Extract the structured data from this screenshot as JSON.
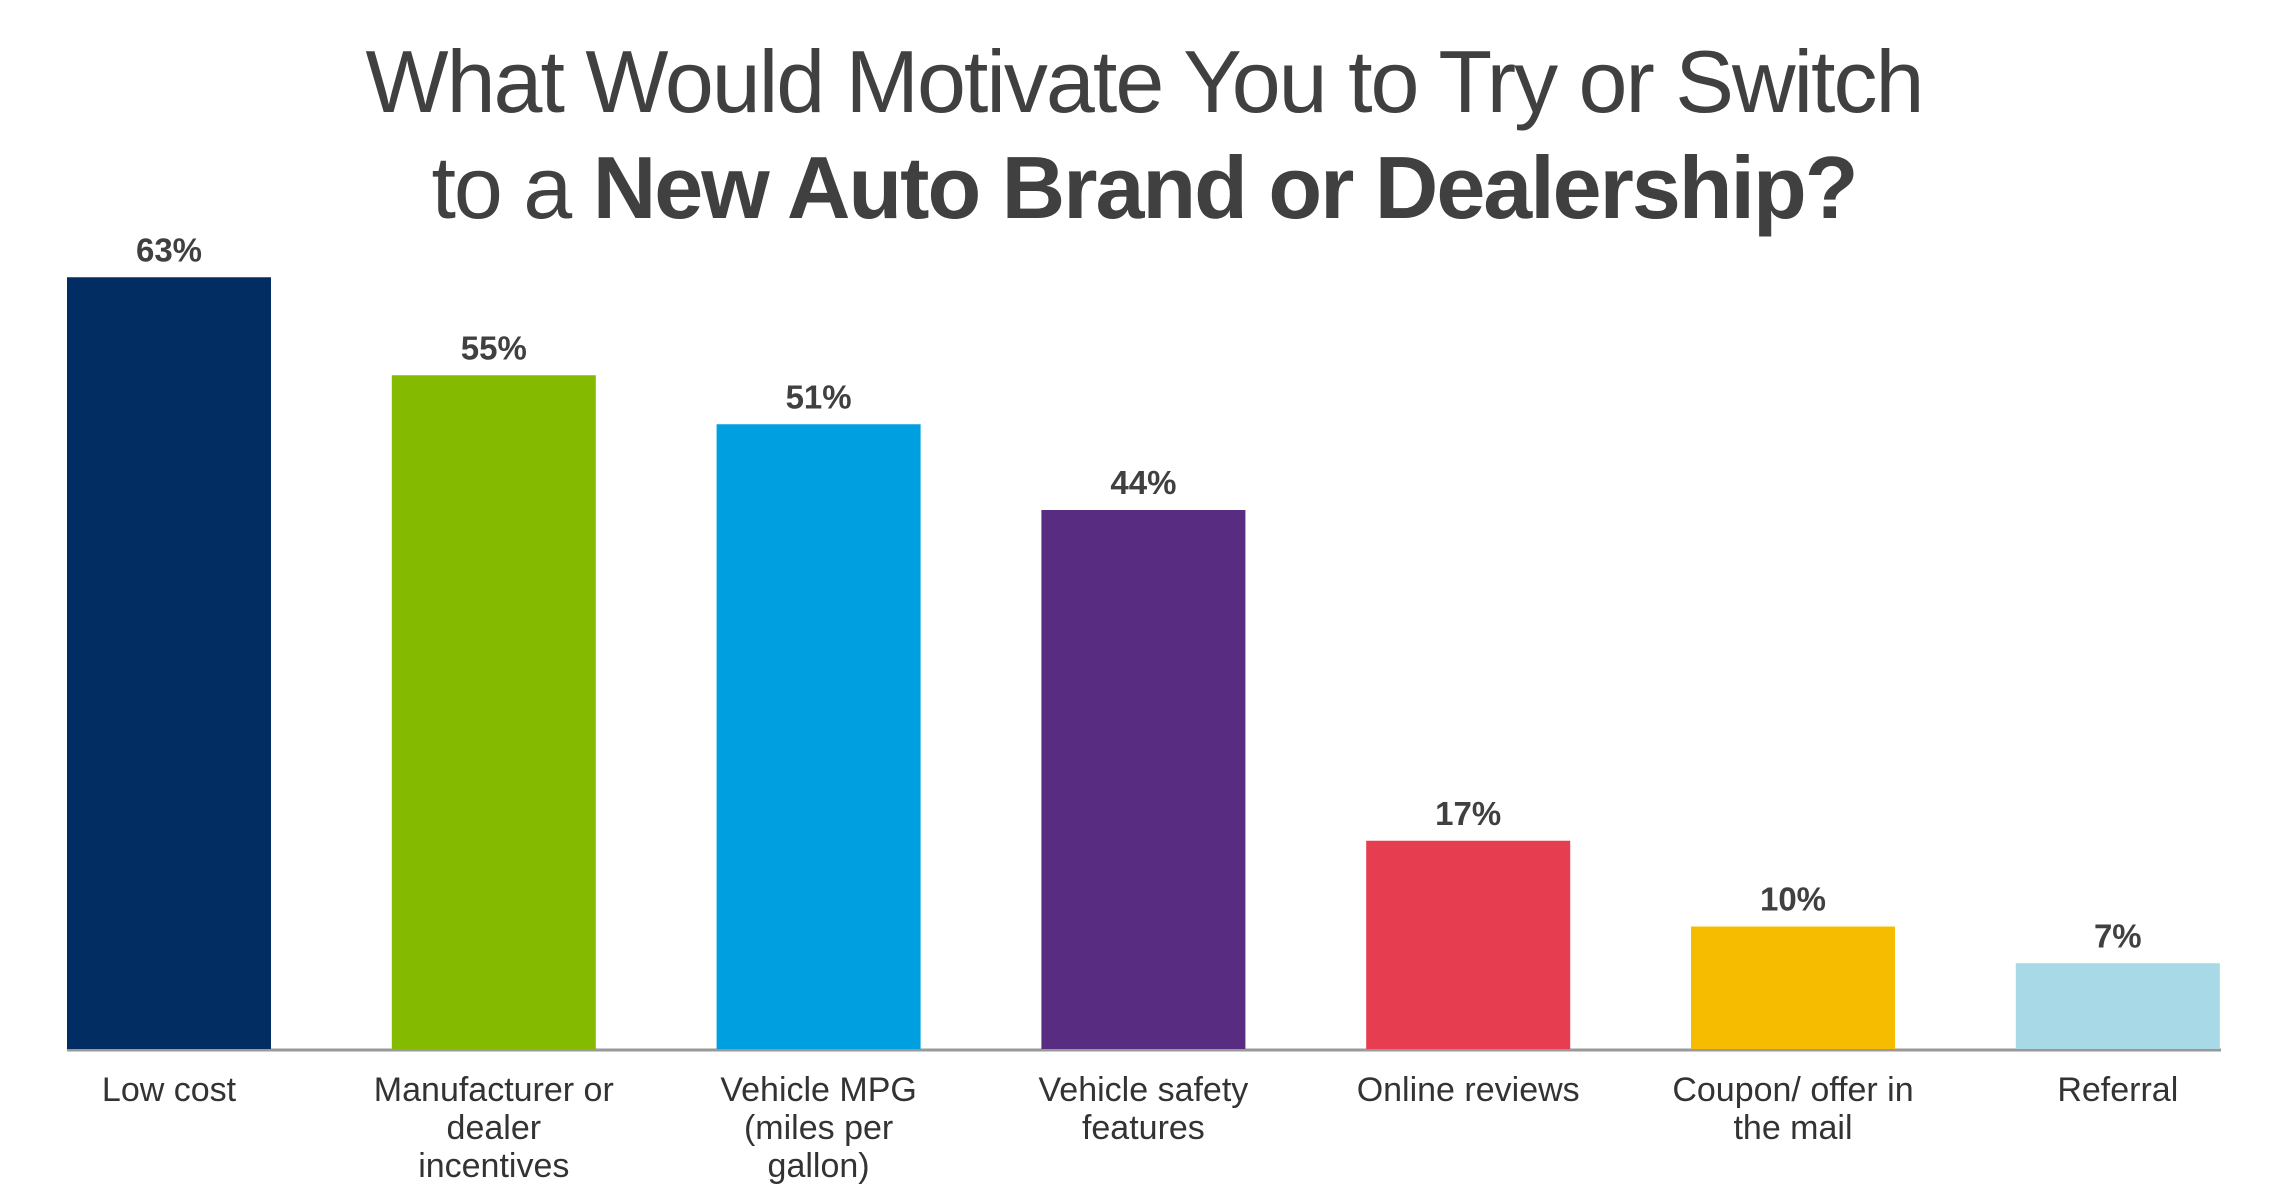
{
  "chart_data": {
    "type": "bar",
    "title": [
      "What Would Motivate You to Try or Switch",
      "to a",
      "New Auto Brand or Dealership?"
    ],
    "categories": [
      "Low cost",
      "Manufacturer or dealer incentives",
      "Vehicle MPG (miles per gallon)",
      "Vehicle safety features",
      "Online reviews",
      "Coupon/ offer in the mail",
      "Referral"
    ],
    "values": [
      63,
      55,
      51,
      44,
      17,
      10,
      7
    ],
    "value_labels": [
      "63%",
      "55%",
      "51%",
      "44%",
      "17%",
      "10%",
      "7%"
    ],
    "colors": [
      "#022d63",
      "#84bb00",
      "#009fe0",
      "#582c81",
      "#e63d51",
      "#f6bc00",
      "#a7d9e6"
    ]
  }
}
